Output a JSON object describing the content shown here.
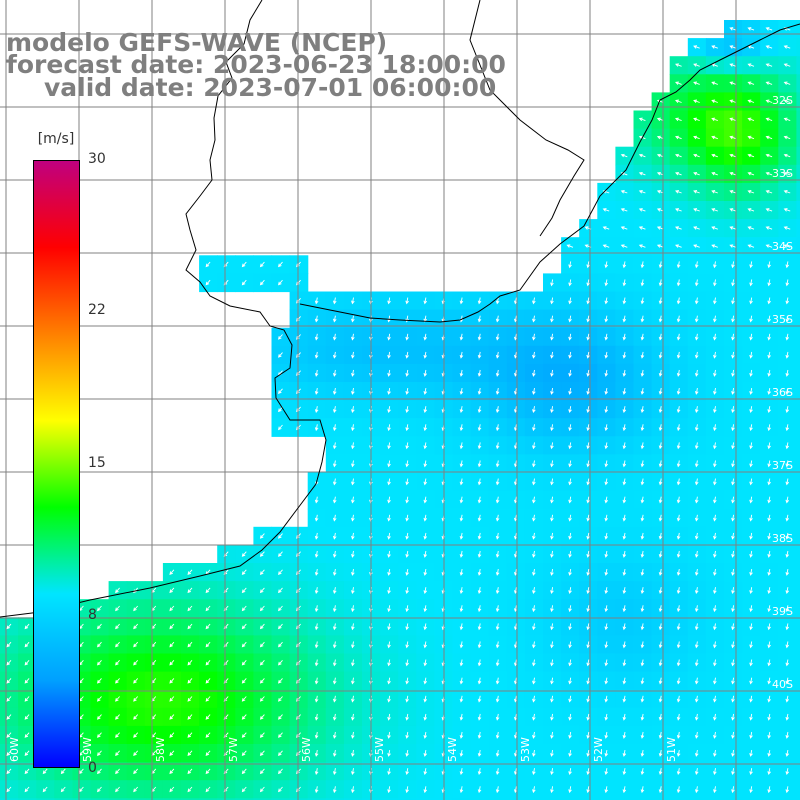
{
  "titles": {
    "line1": "modelo GEFS-WAVE (NCEP)",
    "line2": "forecast date: 2023-06-23 18:00:00",
    "line3": "valid date: 2023-07-01 06:00:00"
  },
  "colorbar": {
    "unit": "[m/s]",
    "ticks": [
      "30",
      "22",
      "15",
      "8",
      "0"
    ],
    "stops": [
      "#0000ff",
      "#00a0ff",
      "#00e5ff",
      "#00ff00",
      "#ffff00",
      "#ff8000",
      "#ff0000",
      "#c0007f"
    ]
  },
  "latitude_labels": [
    "32S",
    "33S",
    "34S",
    "35S",
    "36S",
    "37S",
    "38S",
    "39S",
    "40S"
  ],
  "longitude_labels": [
    "60W",
    "59W",
    "58W",
    "57W",
    "56W",
    "55W",
    "54W",
    "53W",
    "52W",
    "51W"
  ],
  "colors": {
    "land": "#ffffff",
    "coast": "#000000",
    "grid": "#808080",
    "arrows": "#ffffff",
    "title": "#7f7f7f"
  },
  "variable": "wind speed and direction"
}
